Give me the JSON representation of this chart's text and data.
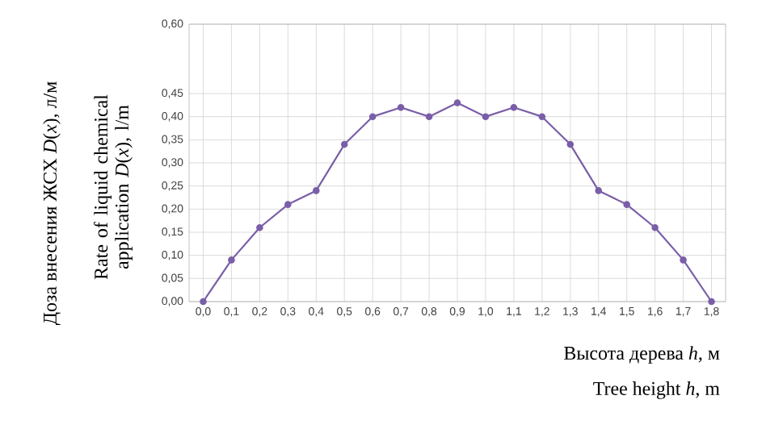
{
  "chart_data": {
    "type": "line",
    "xlabel": "Высота дерева *h*, м",
    "ylabel": "Rate of liquid chemical application *D*(*x*), l/m",
    "annotations": [
      "Доза внесения ЖСХ *D*(*x*), л/м",
      "Tree height *h*, m"
    ],
    "categories": [
      "0,0",
      "0,1",
      "0,2",
      "0,3",
      "0,4",
      "0,5",
      "0,6",
      "0,7",
      "0,8",
      "0,9",
      "1,0",
      "1,1",
      "1,2",
      "1,3",
      "1,4",
      "1,5",
      "1,6",
      "1,7",
      "1,8"
    ],
    "values": [
      0,
      0.09,
      0.16,
      0.21,
      0.24,
      0.34,
      0.4,
      0.42,
      0.4,
      0.43,
      0.4,
      0.42,
      0.4,
      0.34,
      0.24,
      0.21,
      0.16,
      0.09,
      0
    ],
    "color": "#7a5ea8",
    "marker": "circle",
    "grid": true,
    "ylim": [
      0,
      0.6
    ],
    "yticks": [
      {
        "value": 0,
        "label": "0,00"
      },
      {
        "value": 0.05,
        "label": "0,05"
      },
      {
        "value": 0.1,
        "label": "0,10"
      },
      {
        "value": 0.15,
        "label": "0,15"
      },
      {
        "value": 0.2,
        "label": "0,20"
      },
      {
        "value": 0.25,
        "label": "0,25"
      },
      {
        "value": 0.3,
        "label": "0,30"
      },
      {
        "value": 0.35,
        "label": "0,35"
      },
      {
        "value": 0.4,
        "label": "0,40"
      },
      {
        "value": 0.45,
        "label": "0,45"
      },
      {
        "value": 0.6,
        "label": "0,60"
      }
    ]
  }
}
